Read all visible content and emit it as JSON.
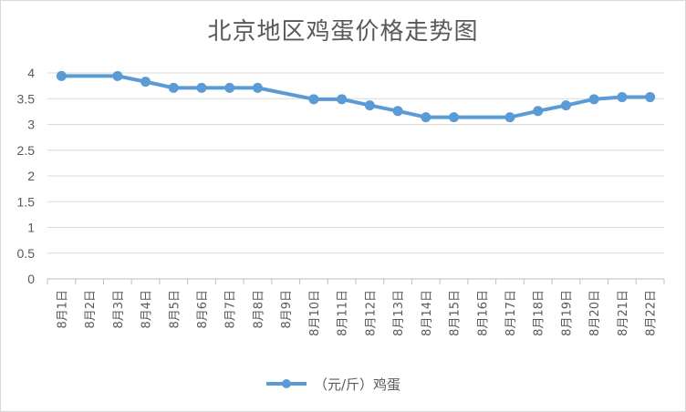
{
  "chart_data": {
    "type": "line",
    "title": "北京地区鸡蛋价格走势图",
    "categories": [
      "8月1日",
      "8月2日",
      "8月3日",
      "8月4日",
      "8月5日",
      "8月6日",
      "8月7日",
      "8月8日",
      "8月9日",
      "8月10日",
      "8月11日",
      "8月12日",
      "8月13日",
      "8月14日",
      "8月15日",
      "8月16日",
      "8月17日",
      "8月18日",
      "8月19日",
      "8月20日",
      "8月21日",
      "8月22日"
    ],
    "series": [
      {
        "name": "（元/斤）鸡蛋",
        "points": [
          [
            "8月1日",
            3.94
          ],
          [
            "8月3日",
            3.94
          ],
          [
            "8月4日",
            3.83
          ],
          [
            "8月5日",
            3.71
          ],
          [
            "8月6日",
            3.71
          ],
          [
            "8月7日",
            3.71
          ],
          [
            "8月8日",
            3.71
          ],
          [
            "8月10日",
            3.49
          ],
          [
            "8月11日",
            3.49
          ],
          [
            "8月12日",
            3.37
          ],
          [
            "8月13日",
            3.26
          ],
          [
            "8月14日",
            3.14
          ],
          [
            "8月15日",
            3.14
          ],
          [
            "8月17日",
            3.14
          ],
          [
            "8月18日",
            3.26
          ],
          [
            "8月19日",
            3.37
          ],
          [
            "8月20日",
            3.49
          ],
          [
            "8月21日",
            3.53
          ],
          [
            "8月22日",
            3.53
          ]
        ],
        "color": "#5b9bd5"
      }
    ],
    "yticks": [
      "0",
      "0.5",
      "1",
      "1.5",
      "2",
      "2.5",
      "3",
      "3.5",
      "4"
    ],
    "ylim": [
      0,
      4
    ],
    "grid": true,
    "legend_position": "bottom"
  }
}
